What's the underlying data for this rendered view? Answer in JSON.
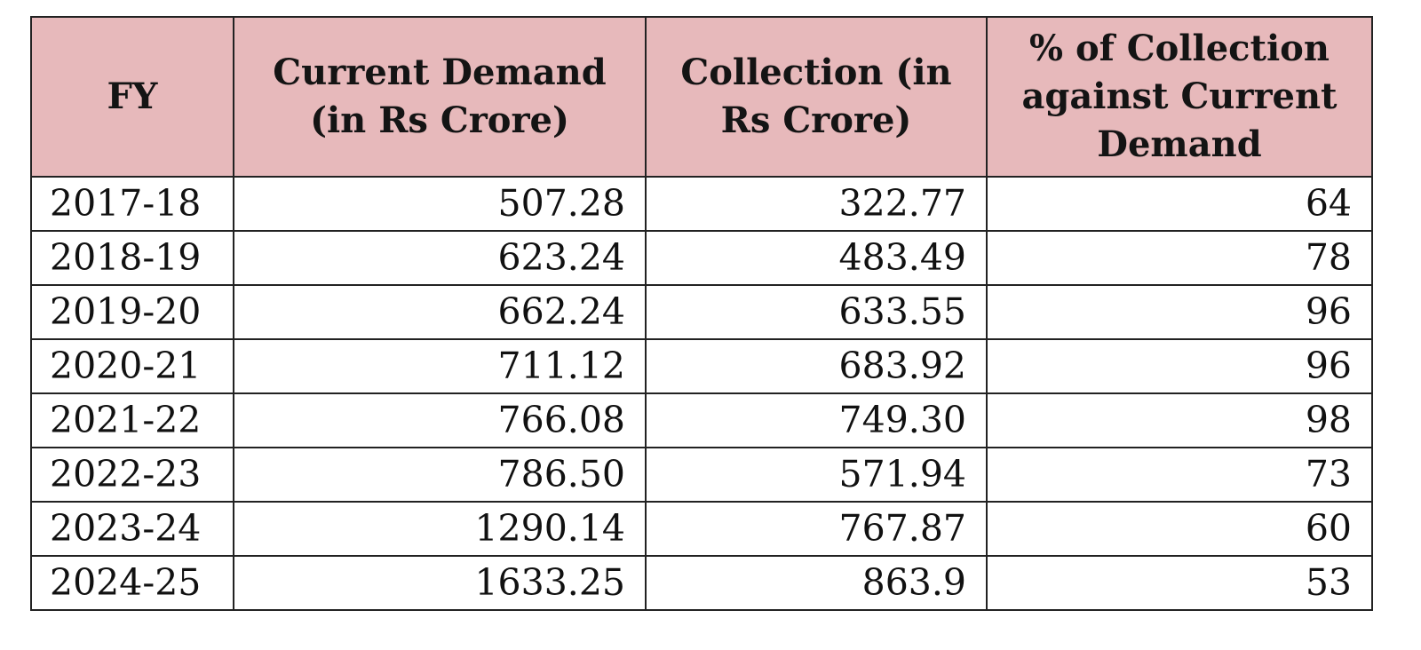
{
  "table": {
    "headers": [
      "FY",
      "Current Demand (in Rs Crore)",
      "Collection (in Rs Crore)",
      "% of Collection against Current Demand"
    ],
    "rows": [
      [
        "2017-18",
        "507.28",
        "322.77",
        "64"
      ],
      [
        "2018-19",
        "623.24",
        "483.49",
        "78"
      ],
      [
        "2019-20",
        "662.24",
        "633.55",
        "96"
      ],
      [
        "2020-21",
        "711.12",
        "683.92",
        "96"
      ],
      [
        "2021-22",
        "766.08",
        "749.30",
        "98"
      ],
      [
        "2022-23",
        "786.50",
        "571.94",
        "73"
      ],
      [
        "2023-24",
        "1290.14",
        "767.87",
        "60"
      ],
      [
        "2024-25",
        "1633.25",
        "863.9",
        "53"
      ]
    ]
  },
  "colors": {
    "header_background": "#e7b9bb",
    "border": "#222222",
    "text": "#111111"
  }
}
